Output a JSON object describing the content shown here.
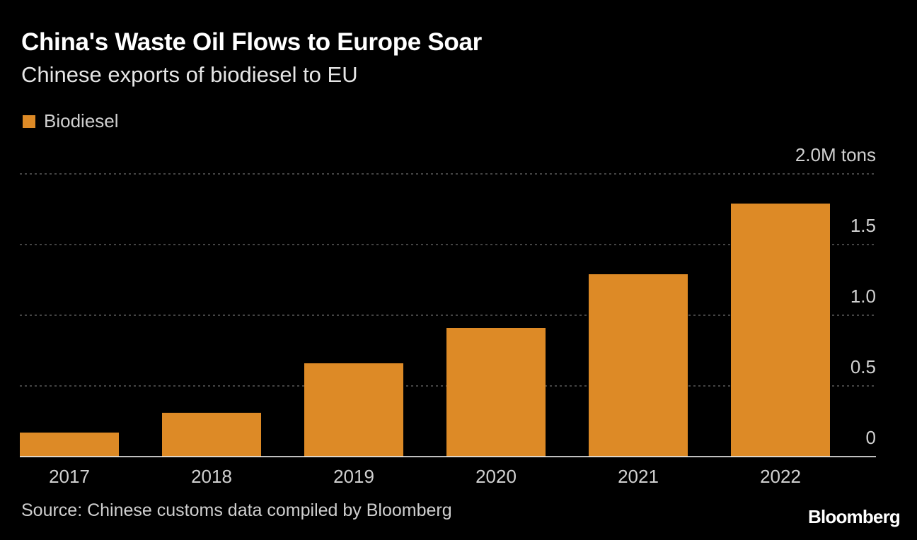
{
  "colors": {
    "background": "#000000",
    "bar": "#dd8a26",
    "grid": "#6e6e6e",
    "axis": "#ffffff",
    "text": "#ffffff",
    "muted_text": "#d0d0d0"
  },
  "brand": "Bloomberg",
  "source": "Source: Chinese customs data compiled by Bloomberg",
  "chart_data": {
    "type": "bar",
    "title": "China's Waste Oil Flows to Europe Soar",
    "subtitle": "Chinese exports of biodiesel to EU",
    "categories": [
      "2017",
      "2018",
      "2019",
      "2020",
      "2021",
      "2022"
    ],
    "series": [
      {
        "name": "Biodiesel",
        "values": [
          0.17,
          0.31,
          0.66,
          0.91,
          1.29,
          1.79
        ]
      }
    ],
    "ylim": [
      0,
      2.0
    ],
    "yticks": [
      0,
      0.5,
      1.0,
      1.5,
      2.0
    ],
    "ytick_labels": [
      "0",
      "0.5",
      "1.0",
      "1.5",
      "2.0M tons"
    ],
    "y_axis_position": "right",
    "grid": true,
    "legend_position": "top-left",
    "xlabel": "",
    "ylabel": ""
  }
}
